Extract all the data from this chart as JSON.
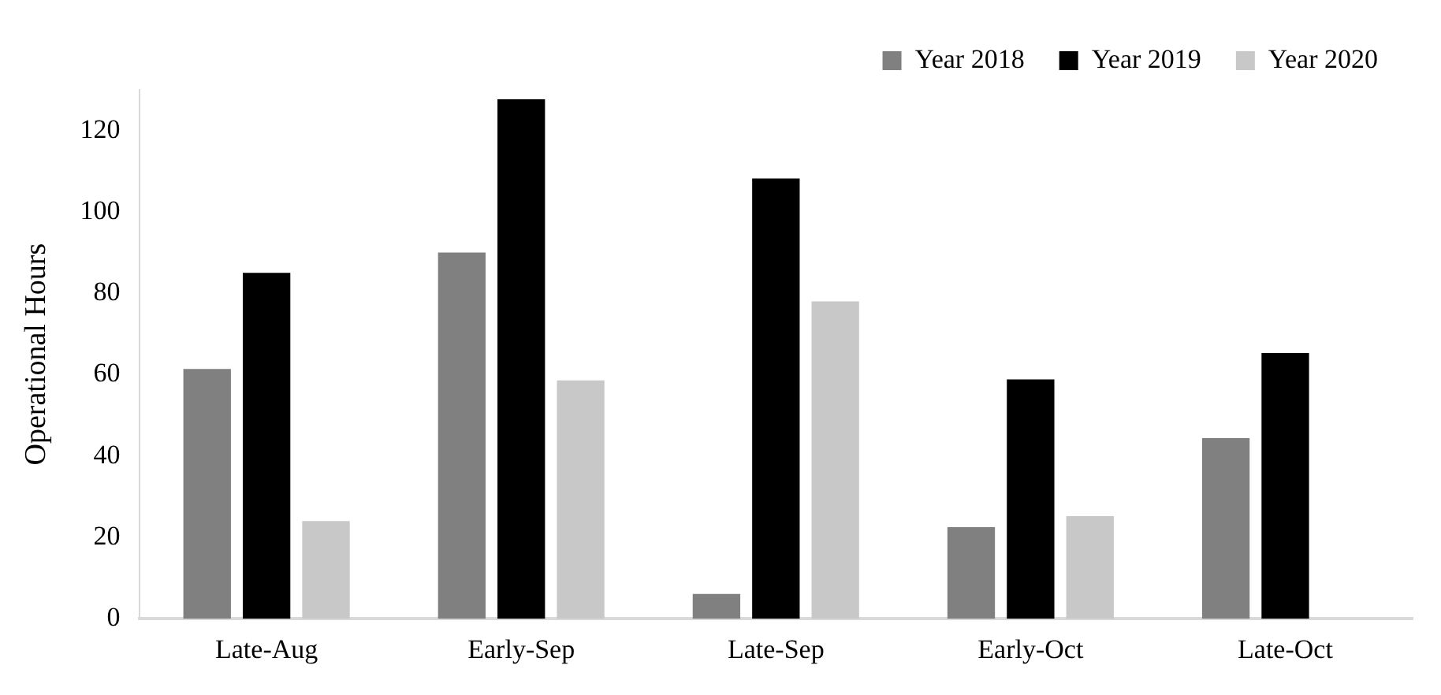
{
  "chart_data": {
    "type": "bar",
    "ylabel": "Operational Hours",
    "categories": [
      "Late-Aug",
      "Early-Sep",
      "Late-Sep",
      "Early-Oct",
      "Late-Oct"
    ],
    "series": [
      {
        "name": "Year 2018",
        "color": "#808080",
        "values": [
          61.4,
          90,
          6.1,
          22.5,
          44.4
        ]
      },
      {
        "name": "Year 2019",
        "color": "#000000",
        "values": [
          85,
          127.7,
          108.2,
          58.8,
          65.3
        ]
      },
      {
        "name": "Year 2020",
        "color": "#c8c8c8",
        "values": [
          24,
          58.6,
          78,
          25.2,
          null
        ]
      }
    ],
    "ylim": [
      0,
      130
    ],
    "yticks": [
      0,
      20,
      40,
      60,
      80,
      100,
      120
    ],
    "grid": false,
    "legend": "top right"
  }
}
